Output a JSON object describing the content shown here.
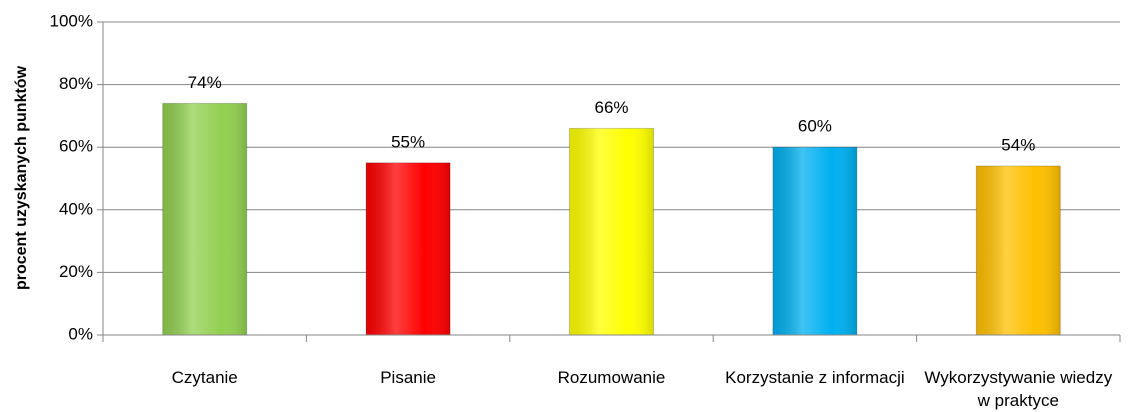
{
  "chart_data": {
    "type": "bar",
    "y_label": "procent uzyskanych punktów",
    "categories": [
      "Czytanie",
      "Pisanie",
      "Rozumowanie",
      "Korzystanie z informacji",
      "Wykorzystywanie wiedzy w praktyce"
    ],
    "values": [
      74,
      55,
      66,
      60,
      54
    ],
    "value_labels": [
      "74%",
      "55%",
      "66%",
      "60%",
      "54%"
    ],
    "colors": [
      "#92d050",
      "#ff0000",
      "#ffff00",
      "#00b0f0",
      "#ffc000"
    ],
    "ylim": [
      0,
      100
    ],
    "yticks": [
      {
        "value": 0,
        "label": "0%"
      },
      {
        "value": 20,
        "label": "20%"
      },
      {
        "value": 40,
        "label": "40%"
      },
      {
        "value": 60,
        "label": "60%"
      },
      {
        "value": 80,
        "label": "80%"
      },
      {
        "value": 100,
        "label": "100%"
      }
    ],
    "grid": true
  }
}
